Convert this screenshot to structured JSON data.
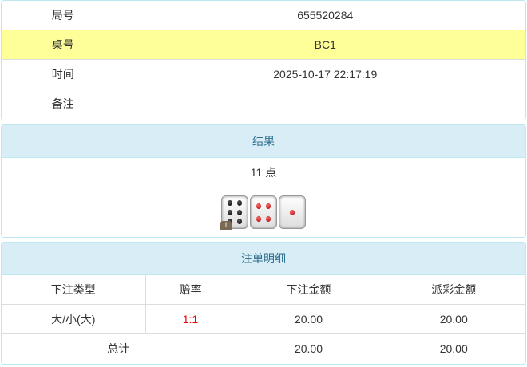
{
  "info": {
    "rows": [
      {
        "label": "局号",
        "value": "655520284"
      },
      {
        "label": "桌号",
        "value": "BC1"
      },
      {
        "label": "时间",
        "value": "2025-10-17 22:17:19"
      },
      {
        "label": "备注",
        "value": ""
      }
    ]
  },
  "result": {
    "title": "结果",
    "points": "11 点",
    "dice": [
      6,
      4,
      1
    ],
    "badge": "i"
  },
  "bets": {
    "title": "注单明细",
    "headers": [
      "下注类型",
      "赔率",
      "下注金额",
      "派彩金额"
    ],
    "rows": [
      {
        "type": "大/小(大)",
        "odds": "1:1",
        "amount": "20.00",
        "payout": "20.00"
      }
    ],
    "total": {
      "label": "总计",
      "amount": "20.00",
      "payout": "20.00"
    }
  },
  "colors": {
    "highlight": "#ffff99",
    "header": "#d9edf7",
    "odds": "#ee0000"
  }
}
